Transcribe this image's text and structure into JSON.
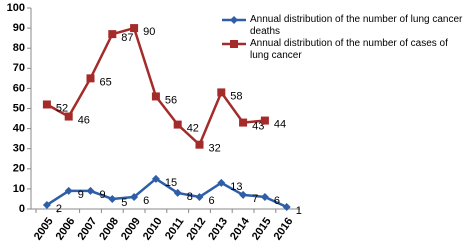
{
  "chart_data": {
    "type": "line",
    "categories": [
      "2005",
      "2006",
      "2007",
      "2008",
      "2009",
      "2010",
      "2011",
      "2012",
      "2013",
      "2014",
      "2015",
      "2016"
    ],
    "series": [
      {
        "name": "Annual distribution of the number of lung cancer deaths",
        "color": "#2e5ea8",
        "marker": "diamond",
        "values": [
          2,
          9,
          9,
          5,
          6,
          15,
          8,
          6,
          13,
          7,
          6,
          1
        ]
      },
      {
        "name": "Annual distribution of the number of cases of lung cancer",
        "color": "#a52a2a",
        "marker": "square",
        "values": [
          52,
          46,
          65,
          87,
          90,
          56,
          42,
          32,
          58,
          43,
          44,
          null
        ]
      }
    ],
    "ylim": [
      0,
      100
    ],
    "yticks": [
      0,
      10,
      20,
      30,
      40,
      50,
      60,
      70,
      80,
      90,
      100
    ],
    "grid": false,
    "legend": "top-right"
  }
}
